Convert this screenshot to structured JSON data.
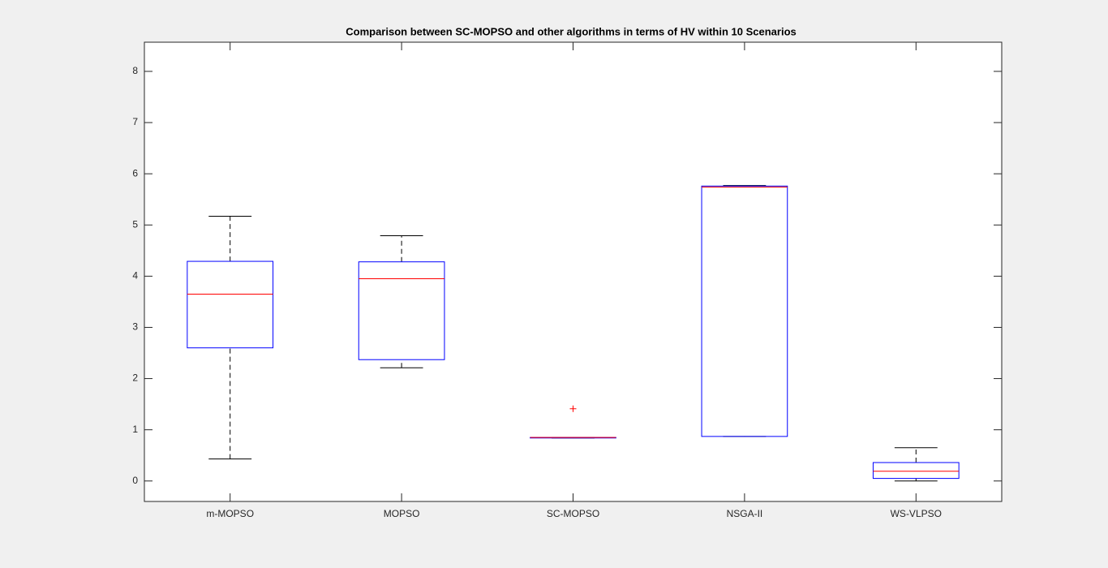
{
  "chart_data": {
    "type": "boxplot",
    "title": "Comparison between SC-MOPSO and other algorithms in terms of HV within 10 Scenarios",
    "categories": [
      "m-MOPSO",
      "MOPSO",
      "SC-MOPSO",
      "NSGA-II",
      "WS-VLPSO"
    ],
    "whisker_low": [
      0.43,
      2.21,
      0.84,
      0.87,
      0
    ],
    "q1": [
      2.6,
      2.37,
      0.84,
      0.87,
      0.05
    ],
    "median": [
      3.65,
      3.95,
      0.85,
      5.74,
      0.19
    ],
    "q3": [
      4.29,
      4.28,
      0.85,
      5.76,
      0.36
    ],
    "whisker_high": [
      5.17,
      4.79,
      0.85,
      5.77,
      0.65
    ],
    "outliers": [
      [],
      [],
      [
        1.41
      ],
      [],
      []
    ],
    "box_color": "#0000ff",
    "median_color": "#ff0000",
    "whisker_color": "#000000",
    "outlier_color": "#ff0000",
    "ylim": [
      -0.4,
      8.57
    ],
    "yticks": [
      0,
      1,
      2,
      3,
      4,
      5,
      6,
      7,
      8
    ]
  }
}
